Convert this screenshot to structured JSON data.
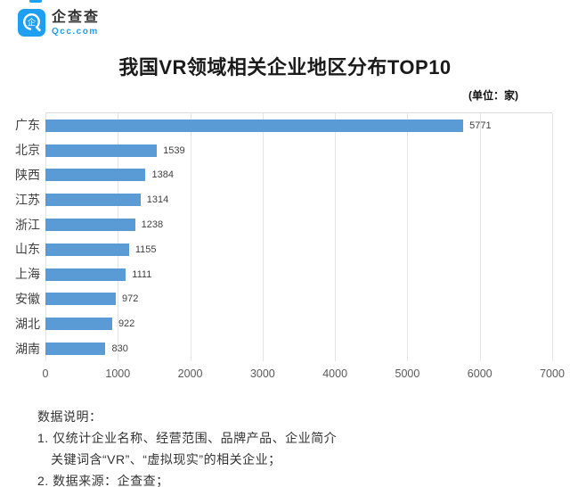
{
  "brand": {
    "name": "企查查",
    "domain": "Qcc.com",
    "logo_color": "#1E9FF2",
    "logo_glyph": "企",
    "icon": "qcc-magnifier-icon"
  },
  "title": "我国VR领域相关企业地区分布TOP10",
  "unit_label": "(单位：家)",
  "chart_data": {
    "type": "bar",
    "orientation": "horizontal",
    "title": "我国VR领域相关企业地区分布TOP10",
    "categories": [
      "广东",
      "北京",
      "陕西",
      "江苏",
      "浙江",
      "山东",
      "上海",
      "安徽",
      "湖北",
      "湖南"
    ],
    "values": [
      5771,
      1539,
      1384,
      1314,
      1238,
      1155,
      1111,
      972,
      922,
      830
    ],
    "xlabel": "",
    "ylabel": "",
    "xlim": [
      0,
      7000
    ],
    "x_ticks": [
      0,
      1000,
      2000,
      3000,
      4000,
      5000,
      6000,
      7000
    ],
    "grid": true,
    "legend": false,
    "bar_color": "#5B9BD5",
    "data_labels": true
  },
  "footnotes": {
    "heading": "数据说明：",
    "lines": [
      "1. 仅统计企业名称、经营范围、品牌产品、企业简介",
      "关键词含“VR”、“虚拟现实”的相关企业；",
      "2. 数据来源：企查查；"
    ]
  }
}
